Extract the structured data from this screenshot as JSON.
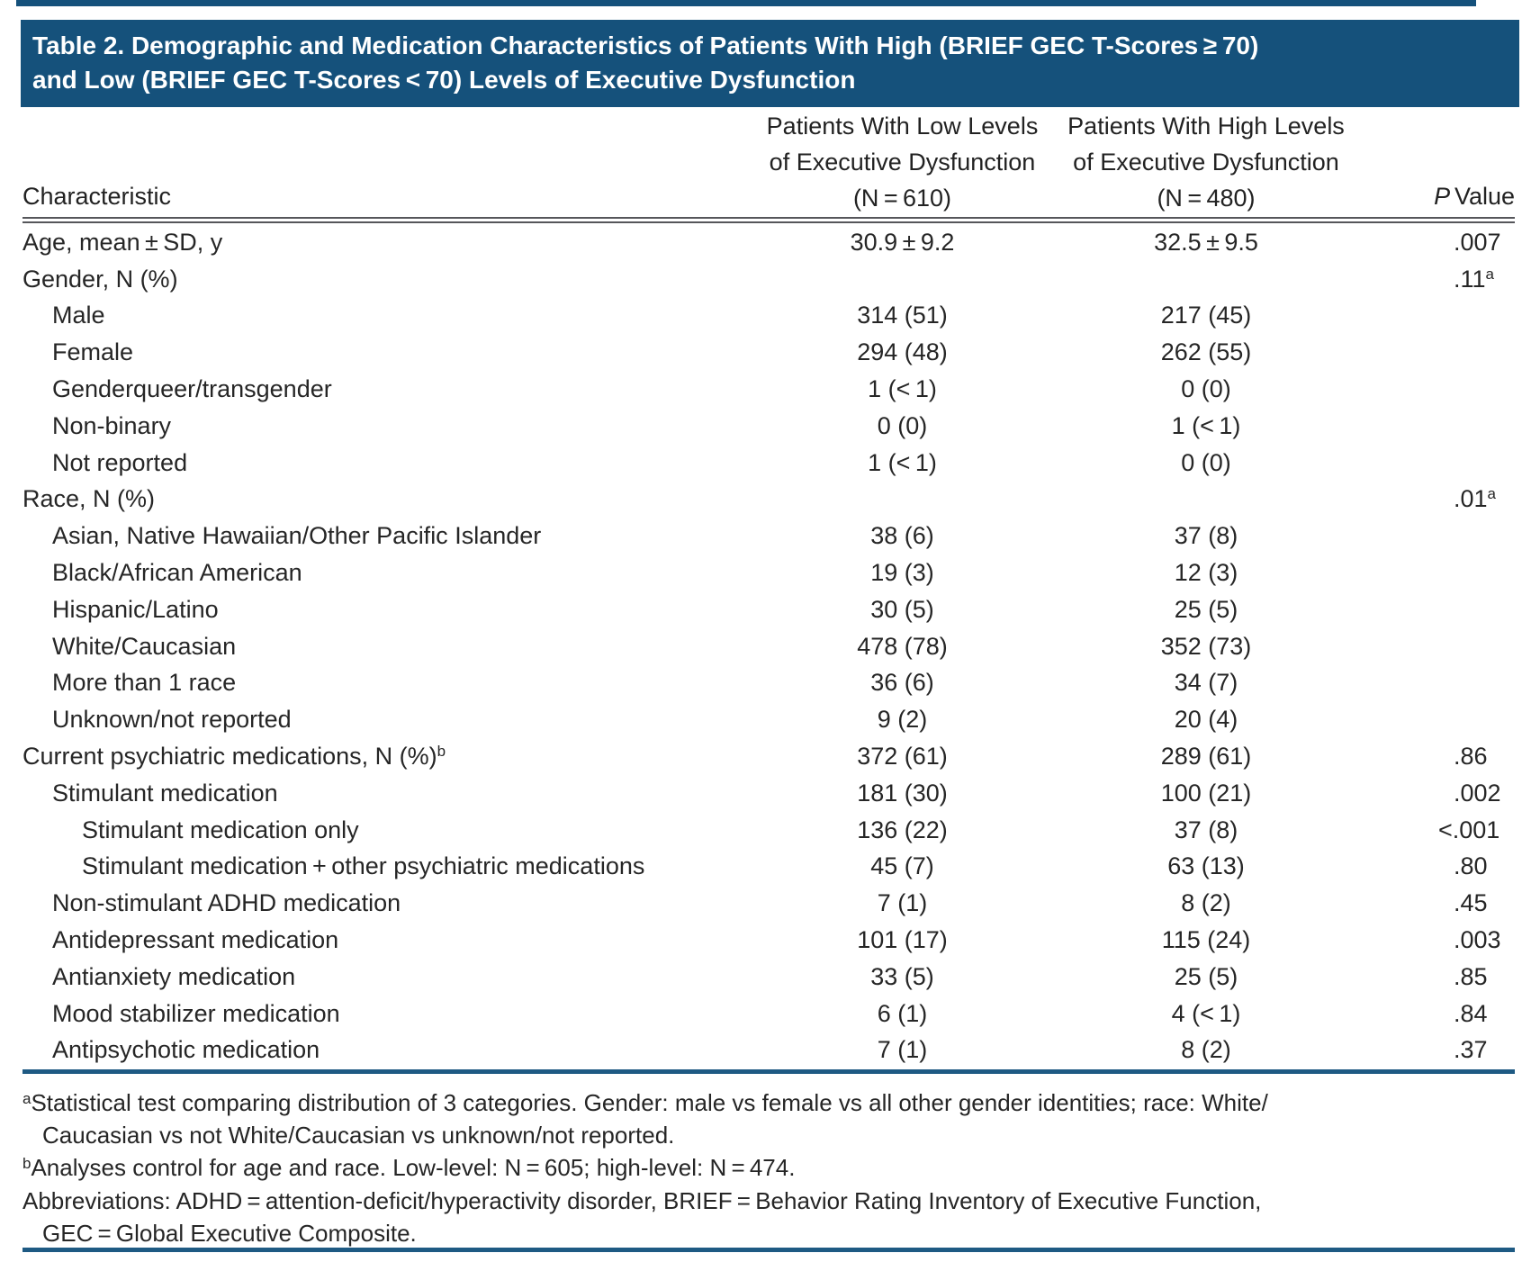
{
  "title": {
    "line1": "Table 2. Demographic and Medication Characteristics of Patients With High (BRIEF GEC T-Scores ≥ 70)",
    "line2": "and Low (BRIEF GEC T-Scores < 70) Levels of Executive Dysfunction"
  },
  "header": {
    "characteristic": "Characteristic",
    "low": {
      "line1": "Patients With Low Levels",
      "line2": "of Executive Dysfunction",
      "line3": "(N = 610)"
    },
    "high": {
      "line1": "Patients With High Levels",
      "line2": "of Executive Dysfunction",
      "line3": "(N = 480)"
    },
    "p_italic": "P",
    "p_rest": "Value"
  },
  "table": {
    "rows": [
      {
        "label": "Age, mean ± SD, y",
        "indent": 0,
        "low": "30.9 ± 9.2",
        "high": "32.5 ± 9.5",
        "p": ".007"
      },
      {
        "label": "Gender, N (%)",
        "indent": 0,
        "p": ".11",
        "p_sup": "a"
      },
      {
        "label": "Male",
        "indent": 1,
        "low": "314 (51)",
        "high": "217 (45)"
      },
      {
        "label": "Female",
        "indent": 1,
        "low": "294 (48)",
        "high": "262 (55)"
      },
      {
        "label": "Genderqueer/transgender",
        "indent": 1,
        "low": "1 (< 1)",
        "high": "0 (0)"
      },
      {
        "label": "Non-binary",
        "indent": 1,
        "low": "0 (0)",
        "high": "1 (< 1)"
      },
      {
        "label": "Not reported",
        "indent": 1,
        "low": "1 (< 1)",
        "high": "0 (0)"
      },
      {
        "label": "Race, N (%)",
        "indent": 0,
        "p": ".01",
        "p_sup": "a"
      },
      {
        "label": "Asian, Native Hawaiian/Other Pacific Islander",
        "indent": 1,
        "low": "38 (6)",
        "high": "37 (8)"
      },
      {
        "label": "Black/African American",
        "indent": 1,
        "low": "19 (3)",
        "high": "12 (3)"
      },
      {
        "label": "Hispanic/Latino",
        "indent": 1,
        "low": "30 (5)",
        "high": "25 (5)"
      },
      {
        "label": "White/Caucasian",
        "indent": 1,
        "low": "478 (78)",
        "high": "352 (73)"
      },
      {
        "label": "More than 1 race",
        "indent": 1,
        "low": "36 (6)",
        "high": "34 (7)"
      },
      {
        "label": "Unknown/not reported",
        "indent": 1,
        "low": "9 (2)",
        "high": "20 (4)"
      },
      {
        "label": "Current psychiatric medications, N (%)",
        "sup": "b",
        "indent": 0,
        "low": "372 (61)",
        "high": "289 (61)",
        "p": ".86"
      },
      {
        "label": "Stimulant medication",
        "indent": 1,
        "low": "181 (30)",
        "high": "100 (21)",
        "p": ".002"
      },
      {
        "label": "Stimulant medication only",
        "indent": 2,
        "low": "136 (22)",
        "high": "37 (8)",
        "p": "<.001"
      },
      {
        "label": "Stimulant medication + other psychiatric medications",
        "indent": 2,
        "low": "45 (7)",
        "high": "63 (13)",
        "p": ".80"
      },
      {
        "label": "Non-stimulant ADHD medication",
        "indent": 1,
        "low": "7 (1)",
        "high": "8 (2)",
        "p": ".45"
      },
      {
        "label": "Antidepressant medication",
        "indent": 1,
        "low": "101 (17)",
        "high": "115 (24)",
        "p": ".003"
      },
      {
        "label": "Antianxiety medication",
        "indent": 1,
        "low": "33 (5)",
        "high": "25 (5)",
        "p": ".85"
      },
      {
        "label": "Mood stabilizer medication",
        "indent": 1,
        "low": "6 (1)",
        "high": "4 (< 1)",
        "p": ".84"
      },
      {
        "label": "Antipsychotic medication",
        "indent": 1,
        "low": "7 (1)",
        "high": "8 (2)",
        "p": ".37"
      }
    ]
  },
  "footnotes": {
    "lines": [
      {
        "sup": "a",
        "text": "Statistical test comparing distribution of 3 categories. Gender: male vs female vs all other gender identities; race: White/",
        "indent": false
      },
      {
        "text": "Caucasian vs not White/Caucasian vs unknown/not reported.",
        "indent": true
      },
      {
        "sup": "b",
        "text": "Analyses control for age and race. Low-level: N = 605; high-level: N = 474.",
        "indent": false
      },
      {
        "text": "Abbreviations: ADHD = attention-deficit/hyperactivity disorder, BRIEF = Behavior Rating Inventory of Executive Function,",
        "indent": false
      },
      {
        "text": "GEC = Global Executive Composite.",
        "indent": true
      }
    ]
  },
  "colors": {
    "title_bar": "#15517b",
    "blue_rule": "#1e5a83",
    "header_rule": "#55565a",
    "body_text": "#262626"
  }
}
